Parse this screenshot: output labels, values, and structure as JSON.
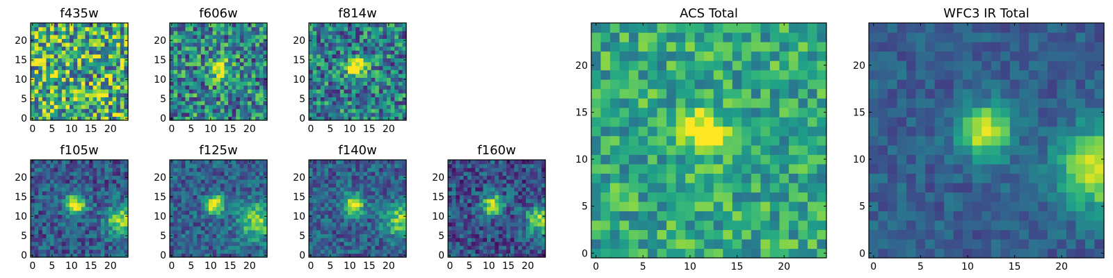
{
  "chart_data": [
    {
      "type": "heatmap",
      "title": "f435w",
      "grid_size": 25,
      "xlim": [
        0,
        24
      ],
      "ylim": [
        0,
        24
      ],
      "xticks": [
        0,
        5,
        10,
        15,
        20
      ],
      "yticks": [
        0,
        5,
        10,
        15,
        20
      ],
      "colormap": "viridis",
      "features": {
        "noise": 0.85,
        "base": 0.62,
        "sources": []
      }
    },
    {
      "type": "heatmap",
      "title": "f606w",
      "grid_size": 25,
      "xlim": [
        0,
        24
      ],
      "ylim": [
        0,
        24
      ],
      "xticks": [
        0,
        5,
        10,
        15,
        20
      ],
      "yticks": [
        0,
        5,
        10,
        15,
        20
      ],
      "colormap": "viridis",
      "features": {
        "noise": 0.7,
        "base": 0.45,
        "sources": [
          {
            "x": 12,
            "y": 13,
            "amp": 0.55,
            "sigma": 1.8
          }
        ]
      }
    },
    {
      "type": "heatmap",
      "title": "f814w",
      "grid_size": 25,
      "xlim": [
        0,
        24
      ],
      "ylim": [
        0,
        24
      ],
      "xticks": [
        0,
        5,
        10,
        15,
        20
      ],
      "yticks": [
        0,
        5,
        10,
        15,
        20
      ],
      "colormap": "viridis",
      "features": {
        "noise": 0.65,
        "base": 0.42,
        "sources": [
          {
            "x": 12,
            "y": 13,
            "amp": 0.65,
            "sigma": 1.7
          }
        ]
      }
    },
    {
      "type": "heatmap",
      "title": "f105w",
      "grid_size": 25,
      "xlim": [
        0,
        24
      ],
      "ylim": [
        0,
        24
      ],
      "xticks": [
        0,
        5,
        10,
        15,
        20
      ],
      "yticks": [
        0,
        5,
        10,
        15,
        20
      ],
      "colormap": "viridis",
      "features": {
        "noise": 0.4,
        "base": 0.28,
        "sources": [
          {
            "x": 11,
            "y": 13,
            "amp": 0.75,
            "sigma": 1.8
          },
          {
            "x": 23,
            "y": 9,
            "amp": 0.55,
            "sigma": 3
          }
        ]
      }
    },
    {
      "type": "heatmap",
      "title": "f125w",
      "grid_size": 25,
      "xlim": [
        0,
        24
      ],
      "ylim": [
        0,
        24
      ],
      "xticks": [
        0,
        5,
        10,
        15,
        20
      ],
      "yticks": [
        0,
        5,
        10,
        15,
        20
      ],
      "colormap": "viridis",
      "features": {
        "noise": 0.38,
        "base": 0.3,
        "sources": [
          {
            "x": 11,
            "y": 13,
            "amp": 0.75,
            "sigma": 1.8
          },
          {
            "x": 22,
            "y": 9,
            "amp": 0.5,
            "sigma": 3.5
          }
        ]
      }
    },
    {
      "type": "heatmap",
      "title": "f140w",
      "grid_size": 25,
      "xlim": [
        0,
        24
      ],
      "ylim": [
        0,
        24
      ],
      "xticks": [
        0,
        5,
        10,
        15,
        20
      ],
      "yticks": [
        0,
        5,
        10,
        15,
        20
      ],
      "colormap": "viridis",
      "features": {
        "noise": 0.38,
        "base": 0.3,
        "sources": [
          {
            "x": 11,
            "y": 13,
            "amp": 0.75,
            "sigma": 1.8
          },
          {
            "x": 23,
            "y": 9,
            "amp": 0.5,
            "sigma": 3
          }
        ]
      }
    },
    {
      "type": "heatmap",
      "title": "f160w",
      "grid_size": 25,
      "xlim": [
        0,
        24
      ],
      "ylim": [
        0,
        24
      ],
      "xticks": [
        0,
        5,
        10,
        15,
        20
      ],
      "yticks": [
        0,
        5,
        10,
        15,
        20
      ],
      "colormap": "viridis",
      "features": {
        "noise": 0.42,
        "base": 0.25,
        "sources": [
          {
            "x": 11,
            "y": 13,
            "amp": 0.75,
            "sigma": 1.8
          },
          {
            "x": 23,
            "y": 9,
            "amp": 0.6,
            "sigma": 2.5
          }
        ]
      }
    },
    {
      "type": "heatmap",
      "title": "ACS Total",
      "grid_size": 25,
      "xlim": [
        0,
        24
      ],
      "ylim": [
        0,
        24
      ],
      "xticks": [
        0,
        5,
        10,
        15,
        20
      ],
      "yticks": [
        0,
        5,
        10,
        15,
        20
      ],
      "colormap": "viridis",
      "features": {
        "noise": 0.45,
        "base": 0.6,
        "sources": [
          {
            "x": 11.5,
            "y": 13,
            "amp": 0.55,
            "sigma": 1.6
          }
        ]
      }
    },
    {
      "type": "heatmap",
      "title": "WFC3 IR Total",
      "grid_size": 25,
      "xlim": [
        0,
        24
      ],
      "ylim": [
        0,
        24
      ],
      "xticks": [
        0,
        5,
        10,
        15,
        20
      ],
      "yticks": [
        0,
        5,
        10,
        15,
        20
      ],
      "colormap": "viridis",
      "features": {
        "noise": 0.22,
        "base": 0.3,
        "sources": [
          {
            "x": 12,
            "y": 13,
            "amp": 0.7,
            "sigma": 1.9
          },
          {
            "x": 24,
            "y": 9,
            "amp": 0.65,
            "sigma": 3
          }
        ]
      }
    }
  ]
}
